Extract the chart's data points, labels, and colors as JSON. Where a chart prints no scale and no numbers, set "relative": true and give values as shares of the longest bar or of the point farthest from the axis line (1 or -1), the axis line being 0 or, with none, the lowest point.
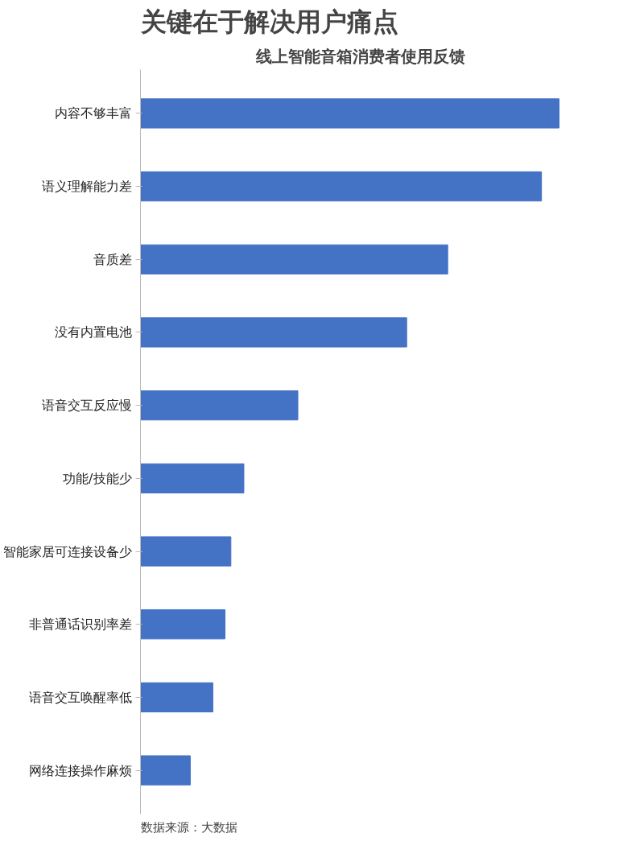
{
  "chart_data": {
    "type": "bar",
    "orientation": "horizontal",
    "relative": true,
    "title": "关键在于解决用户痛点",
    "subtitle": "线上智能音箱消费者使用反馈",
    "categories": [
      "内容不够丰富",
      "语义理解能力差",
      "音质差",
      "没有内置电池",
      "语音交互反应慢",
      "功能/技能少",
      "智能家居可连接设备少",
      "非普通话识别率差",
      "语音交互唤醒率低",
      "网络连接操作麻烦"
    ],
    "values": [
      1,
      0.958,
      0.734,
      0.636,
      0.376,
      0.247,
      0.216,
      0.202,
      0.173,
      0.119
    ],
    "color": "#4472c4",
    "grid": false,
    "annotations": [
      "数据来源：大数据"
    ]
  }
}
